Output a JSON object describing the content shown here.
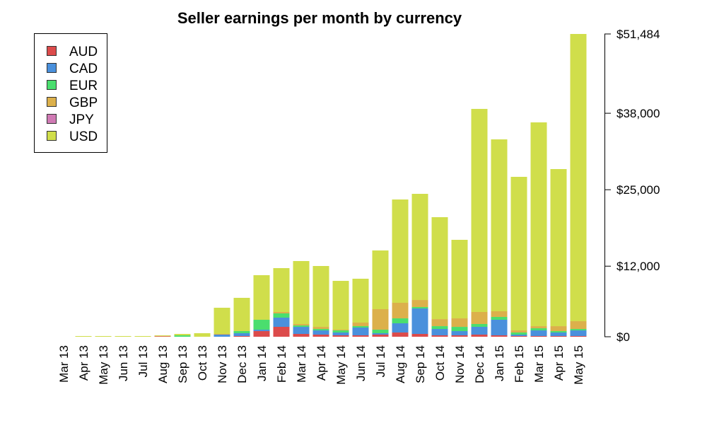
{
  "chart_data": {
    "type": "bar",
    "stacked": true,
    "title": "Seller earnings per month by currency",
    "xlabel": "",
    "ylabel": "",
    "ylim": [
      0,
      51484
    ],
    "y_axis_position": "right",
    "y_ticks": [
      0,
      12000,
      25000,
      38000,
      51484
    ],
    "y_tick_labels": [
      "$0",
      "$12,000",
      "$25,000",
      "$38,000",
      "$51,484"
    ],
    "grid": false,
    "legend_position": "top-left",
    "categories": [
      "Mar 13",
      "Apr 13",
      "May 13",
      "Jun 13",
      "Jul 13",
      "Aug 13",
      "Sep 13",
      "Oct 13",
      "Nov 13",
      "Dec 13",
      "Jan 14",
      "Feb 14",
      "Mar 14",
      "Apr 14",
      "May 14",
      "Jun 14",
      "Jul 14",
      "Aug 14",
      "Sep 14",
      "Oct 14",
      "Nov 14",
      "Dec 14",
      "Jan 15",
      "Feb 15",
      "Mar 15",
      "Apr 15",
      "May 15"
    ],
    "series": [
      {
        "name": "AUD",
        "color": "#dc4b4b",
        "values": [
          0,
          0,
          0,
          0,
          0,
          100,
          0,
          0,
          0,
          120,
          960,
          1685,
          480,
          360,
          240,
          240,
          360,
          720,
          480,
          240,
          240,
          360,
          240,
          120,
          120,
          120,
          120
        ]
      },
      {
        "name": "CAD",
        "color": "#4a90dc",
        "values": [
          0,
          0,
          0,
          0,
          0,
          0,
          0,
          0,
          360,
          480,
          240,
          1565,
          1200,
          720,
          480,
          1325,
          240,
          1565,
          4330,
          1080,
          720,
          1325,
          2650,
          240,
          960,
          600,
          960
        ]
      },
      {
        "name": "EUR",
        "color": "#4ade6e",
        "values": [
          0,
          0,
          0,
          0,
          0,
          0,
          240,
          0,
          0,
          360,
          1685,
          720,
          240,
          240,
          360,
          240,
          600,
          840,
          240,
          480,
          720,
          480,
          480,
          360,
          360,
          240,
          240
        ]
      },
      {
        "name": "GBP",
        "color": "#dcb04b",
        "values": [
          0,
          0,
          0,
          0,
          0,
          40,
          0,
          0,
          120,
          0,
          0,
          240,
          240,
          360,
          120,
          600,
          3490,
          2650,
          1200,
          1200,
          1445,
          2045,
          960,
          360,
          360,
          840,
          1325
        ]
      },
      {
        "name": "JPY",
        "color": "#d07ab4",
        "values": [
          0,
          0,
          0,
          0,
          0,
          0,
          0,
          0,
          0,
          0,
          0,
          0,
          0,
          0,
          0,
          0,
          0,
          0,
          0,
          0,
          0,
          0,
          0,
          0,
          0,
          0,
          0
        ]
      },
      {
        "name": "USD",
        "color": "#d0de4b",
        "values": [
          0,
          120,
          120,
          120,
          120,
          100,
          240,
          600,
          4450,
          5655,
          7585,
          7460,
          10710,
          10350,
          8300,
          7460,
          9980,
          17565,
          18050,
          17330,
          13355,
          34530,
          29230,
          26110,
          34650,
          26710,
          48839
        ]
      }
    ]
  }
}
